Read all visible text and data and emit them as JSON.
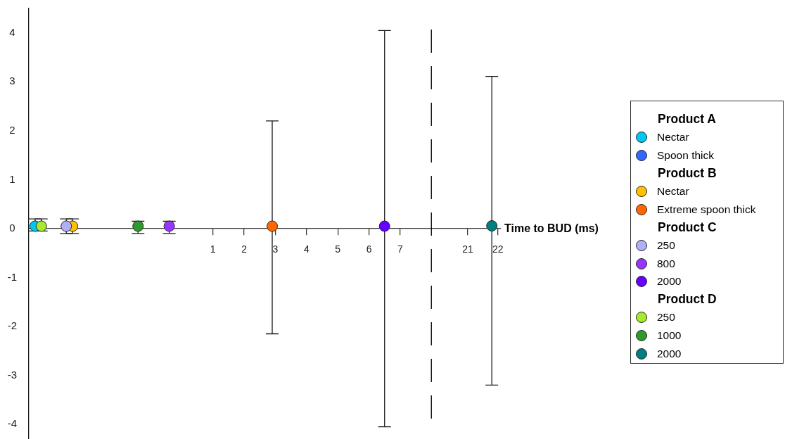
{
  "chart_data": [
    {
      "type": "scatter",
      "xlim": [
        -4.9,
        8.4
      ],
      "xticks": [
        1,
        2,
        3,
        4,
        5,
        6,
        7
      ],
      "ylim": [
        -4.3,
        4.5
      ],
      "yticks": [
        -4,
        -3,
        -2,
        -1,
        0,
        1,
        2,
        3,
        4
      ],
      "legend": "right",
      "marker": "circle",
      "annotations": [
        "Product A",
        "Product B",
        "Product C",
        "Product D"
      ],
      "ref_lines": [
        {
          "axis": "x",
          "value": 8.0,
          "line_style": "dashed",
          "color": "#000000"
        }
      ],
      "series": [
        {
          "name": "Nectar",
          "color": "#00c8f5",
          "x": [
            -4.7
          ],
          "values": [
            0.05
          ],
          "errors": [
            [
              -0.05,
              0.2
            ]
          ]
        },
        {
          "name": "Spoon thick",
          "color": "#3366ff",
          "x": [
            null
          ],
          "values": [
            null
          ],
          "errors": [
            null
          ]
        },
        {
          "name": "Nectar",
          "color": "#ffc000",
          "x": [
            -3.5
          ],
          "values": [
            0.05
          ],
          "errors": [
            [
              -0.1,
              0.2
            ]
          ]
        },
        {
          "name": "Extreme spoon thick",
          "color": "#ff6600",
          "x": [
            2.9
          ],
          "values": [
            0.05
          ],
          "errors": [
            [
              -2.15,
              2.2
            ]
          ]
        },
        {
          "name": "250",
          "color": "#b0b0f8",
          "x": [
            -3.7
          ],
          "values": [
            0.05
          ],
          "errors": [
            [
              -0.1,
              0.2
            ]
          ]
        },
        {
          "name": "800",
          "color": "#9933ff",
          "x": [
            -0.4
          ],
          "values": [
            0.05
          ],
          "errors": [
            [
              -0.1,
              0.15
            ]
          ]
        },
        {
          "name": "2000",
          "color": "#6600ff",
          "x": [
            6.5
          ],
          "values": [
            0.05
          ],
          "errors": [
            [
              -4.05,
              4.05
            ]
          ]
        },
        {
          "name": "250",
          "color": "#a8e830",
          "x": [
            -4.5
          ],
          "values": [
            0.05
          ],
          "errors": [
            [
              -0.05,
              0.2
            ]
          ]
        },
        {
          "name": "1000",
          "color": "#2e9a2e",
          "x": [
            -1.4
          ],
          "values": [
            0.05
          ],
          "errors": [
            [
              -0.1,
              0.15
            ]
          ]
        }
      ]
    },
    {
      "type": "scatter",
      "xlabel": "Time to BUD (ms)",
      "xlim": [
        20.2,
        22.1
      ],
      "xticks": [
        21,
        22
      ],
      "ylim": [
        -4,
        4
      ],
      "yticks": [
        -4,
        -3,
        -2,
        -1,
        0,
        1,
        2,
        3,
        4
      ],
      "tick_labels": "x",
      "legend": "right",
      "marker": "circle",
      "series": [
        {
          "name": "2000",
          "color": "#008080",
          "x": [
            21.8
          ],
          "values": [
            0.05
          ],
          "errors": [
            [
              -3.2,
              3.1
            ]
          ]
        }
      ]
    }
  ]
}
